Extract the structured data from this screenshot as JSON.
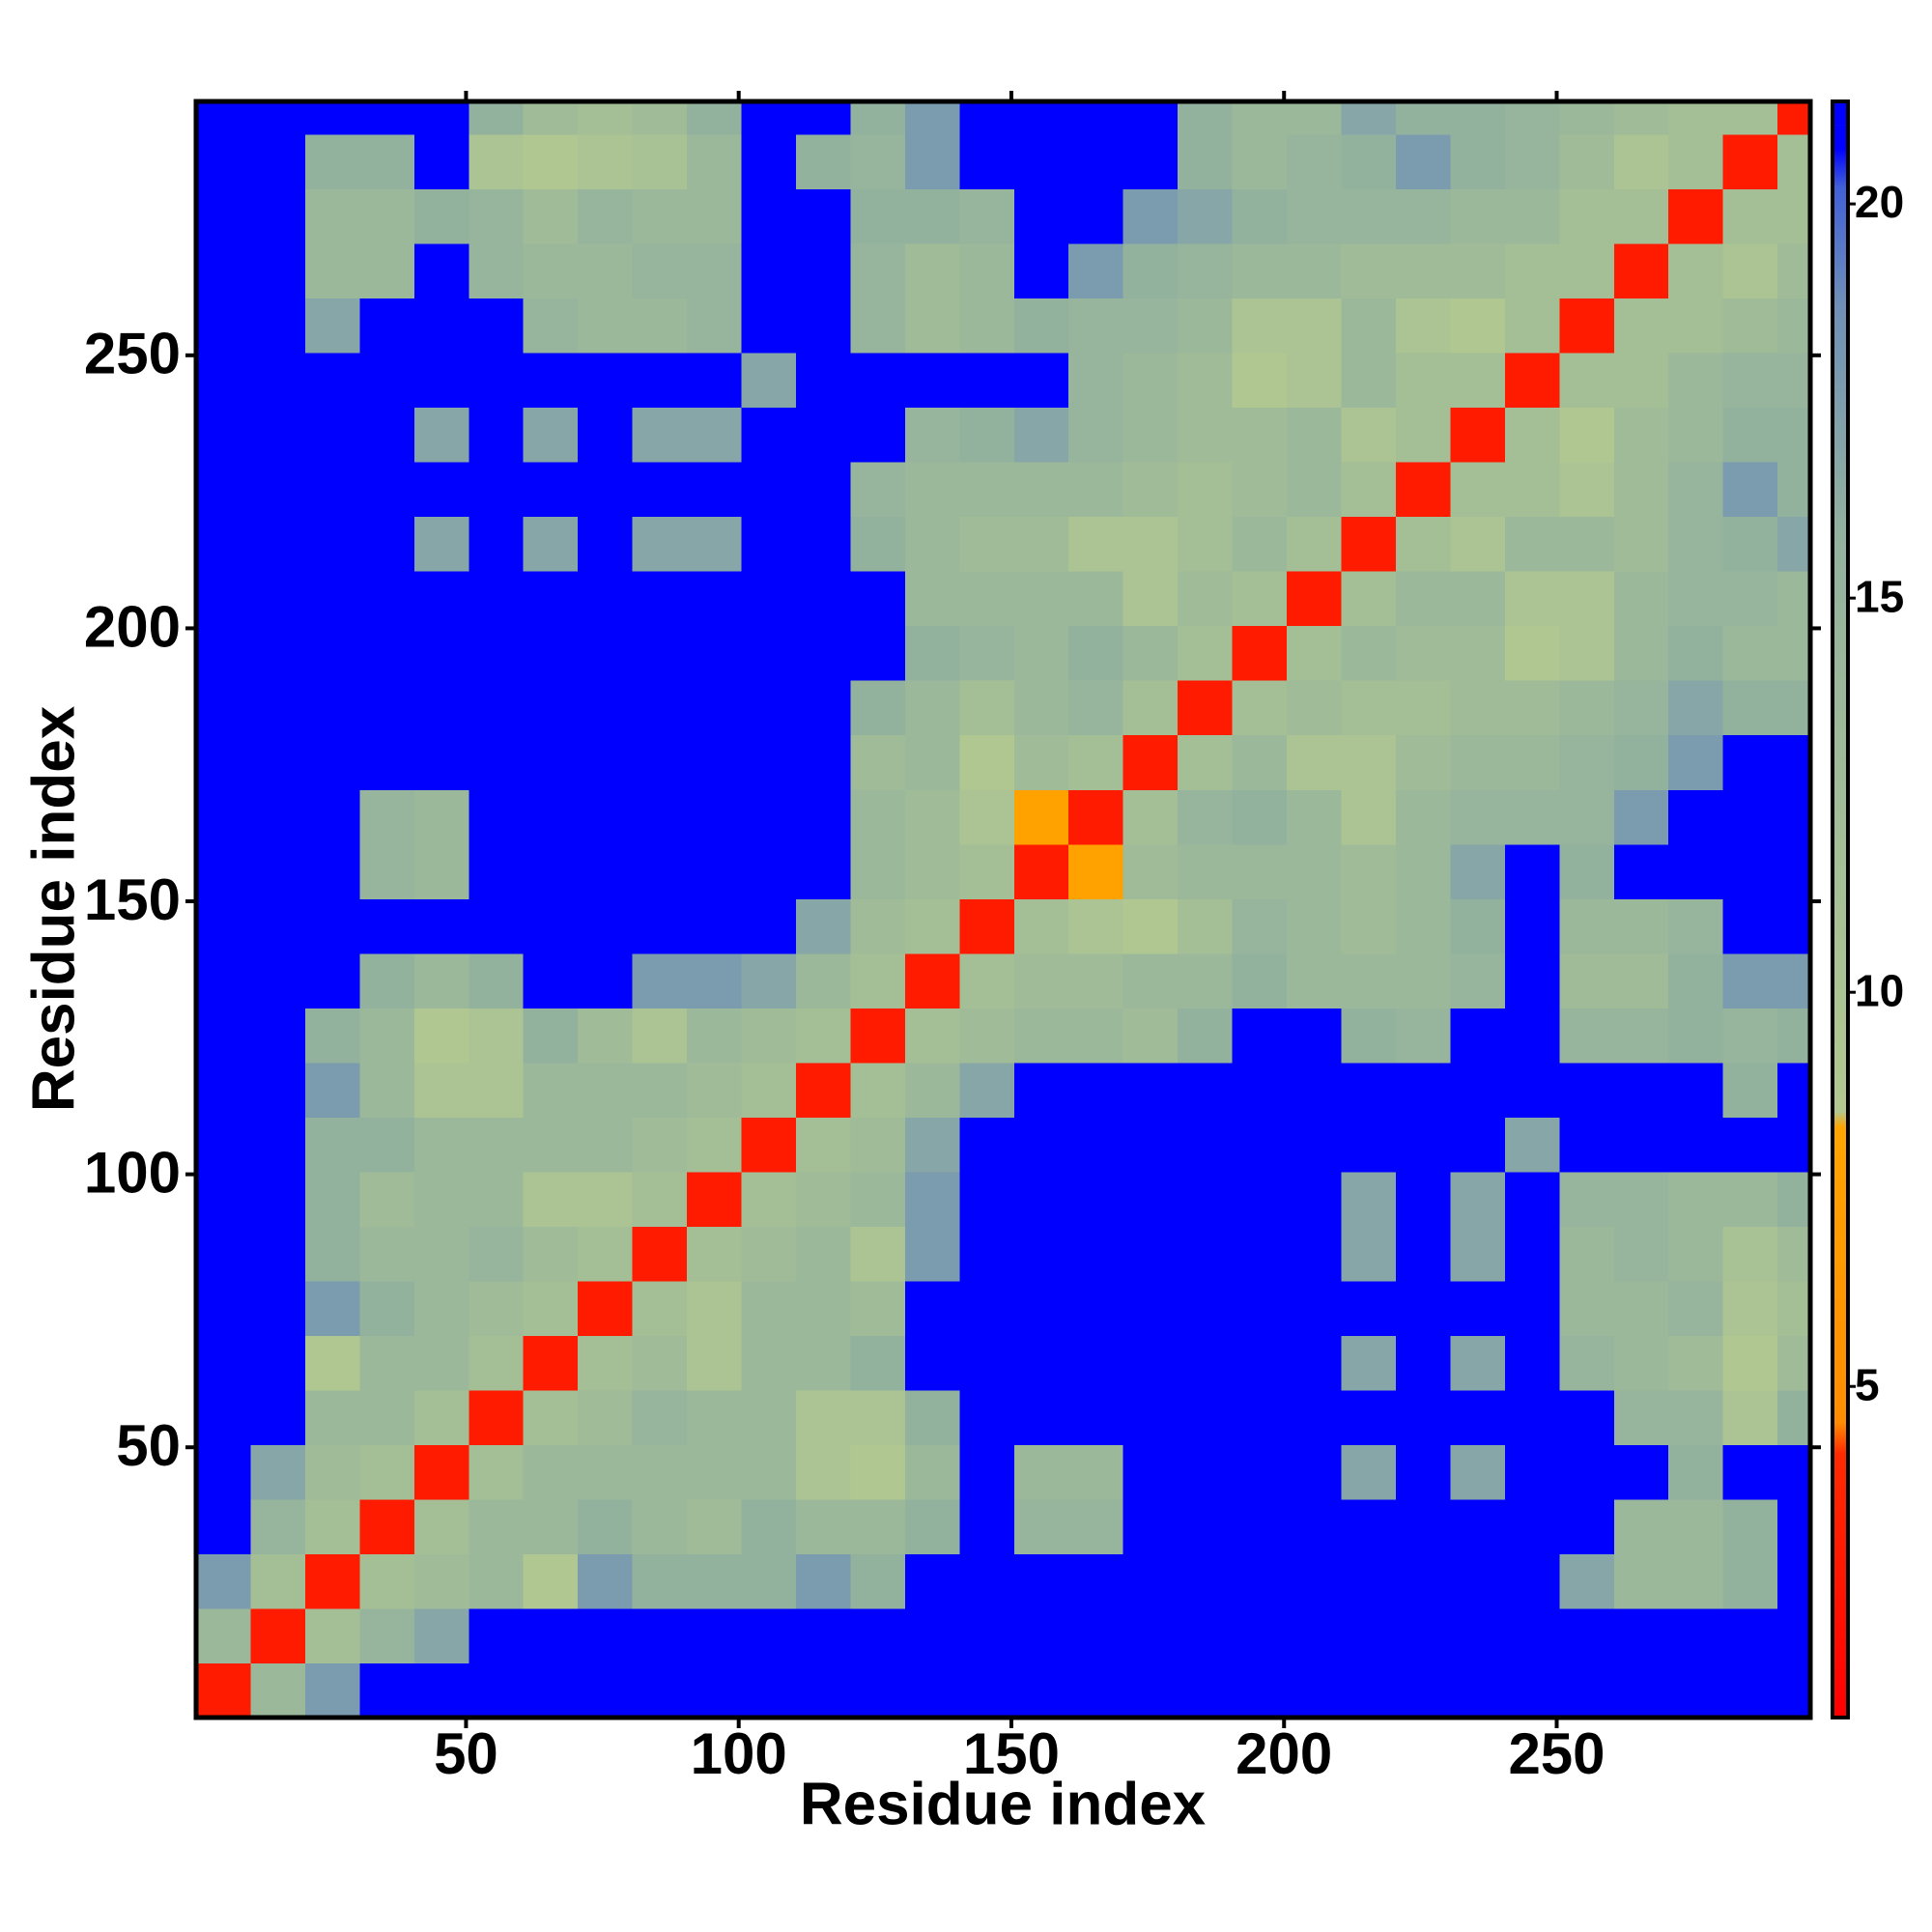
{
  "chart_data": {
    "type": "heatmap",
    "xlabel": "Residue index",
    "ylabel": "Residue index",
    "xlim": [
      0.5,
      296.5
    ],
    "ylim": [
      0.5,
      296.5
    ],
    "xticks": [
      50,
      100,
      150,
      200,
      250
    ],
    "yticks": [
      50,
      100,
      150,
      200,
      250
    ],
    "bins": [
      0.5,
      10.5,
      20.5,
      30.5,
      40.5,
      50.5,
      60.5,
      70.5,
      80.5,
      90.5,
      100.5,
      110.5,
      120.5,
      130.5,
      140.5,
      150.5,
      160.5,
      170.5,
      180.5,
      190.5,
      200.5,
      210.5,
      220.5,
      230.5,
      240.5,
      250.5,
      260.5,
      270.5,
      280.5,
      290.5,
      296.5
    ],
    "symmetric": true,
    "z": [
      [
        3,
        14,
        18,
        21,
        21,
        21,
        21,
        21,
        21,
        21,
        21,
        21,
        21,
        21,
        21,
        21,
        21,
        21,
        21,
        21,
        21,
        21,
        21,
        21,
        21,
        21,
        21,
        21,
        21,
        21
      ],
      [
        3,
        12,
        15,
        17,
        21,
        21,
        21,
        21,
        21,
        21,
        21,
        21,
        21,
        21,
        21,
        21,
        21,
        21,
        21,
        21,
        21,
        21,
        21,
        21,
        21,
        21,
        21,
        21,
        21
      ],
      [
        3,
        12,
        13,
        14,
        9,
        18,
        16,
        16,
        16,
        18,
        16,
        21,
        21,
        21,
        21,
        21,
        21,
        21,
        21,
        21,
        21,
        21,
        21,
        17,
        14,
        14,
        16,
        21
      ],
      [
        3,
        12,
        14,
        14,
        16,
        14,
        13,
        16,
        14,
        14,
        16,
        21,
        15,
        15,
        21,
        21,
        21,
        21,
        21,
        21,
        21,
        21,
        21,
        14,
        14,
        16,
        21
      ],
      [
        3,
        12,
        14,
        14,
        14,
        14,
        14,
        10,
        9,
        14,
        21,
        14,
        14,
        21,
        21,
        21,
        21,
        17,
        21,
        17,
        21,
        21,
        21,
        16,
        21,
        21
      ],
      [
        3,
        12,
        13,
        15,
        14,
        14,
        10,
        10,
        16,
        21,
        21,
        21,
        21,
        21,
        21,
        21,
        21,
        21,
        21,
        21,
        21,
        15,
        15,
        10,
        16
      ],
      [
        3,
        12,
        13,
        10,
        14,
        14,
        16,
        21,
        21,
        21,
        21,
        21,
        21,
        21,
        21,
        17,
        21,
        17,
        21,
        15,
        14,
        13,
        9,
        13
      ],
      [
        3,
        12,
        10,
        14,
        14,
        13,
        21,
        21,
        21,
        21,
        21,
        21,
        21,
        21,
        21,
        21,
        21,
        21,
        14,
        14,
        15,
        10,
        12
      ],
      [
        3,
        12,
        13,
        14,
        10,
        18,
        21,
        21,
        21,
        21,
        21,
        21,
        21,
        17,
        21,
        17,
        21,
        14,
        15,
        14,
        11,
        13
      ],
      [
        3,
        12,
        13,
        14,
        18,
        21,
        21,
        21,
        21,
        21,
        21,
        21,
        17,
        21,
        17,
        21,
        15,
        15,
        14,
        14,
        16
      ],
      [
        3,
        12,
        13,
        17,
        21,
        21,
        21,
        21,
        21,
        21,
        21,
        21,
        21,
        21,
        17,
        21,
        21,
        21,
        21,
        21
      ],
      [
        3,
        12,
        14,
        17,
        21,
        21,
        21,
        21,
        21,
        21,
        21,
        21,
        21,
        21,
        21,
        21,
        21,
        16,
        21
      ],
      [
        3,
        12,
        13,
        14,
        14,
        13,
        16,
        21,
        21,
        16,
        15,
        21,
        21,
        15,
        15,
        16,
        15,
        16
      ],
      [
        3,
        12,
        13,
        13,
        14,
        14,
        16,
        14,
        14,
        14,
        15,
        21,
        13,
        13,
        16,
        18,
        18
      ],
      [
        3,
        12,
        10,
        9,
        12,
        15,
        14,
        13,
        14,
        16,
        21,
        14,
        14,
        15,
        21,
        21
      ],
      [
        3,
        8,
        13,
        14,
        14,
        14,
        13,
        14,
        17,
        21,
        16,
        21,
        21,
        21,
        21
      ],
      [
        3,
        12,
        15,
        16,
        14,
        10,
        14,
        15,
        15,
        15,
        18,
        21,
        21,
        21
      ],
      [
        3,
        12,
        14,
        10,
        10,
        13,
        14,
        14,
        15,
        16,
        18,
        21,
        21
      ],
      [
        3,
        12,
        13,
        12,
        12,
        13,
        13,
        14,
        15,
        17,
        16,
        16
      ],
      [
        3,
        12,
        14,
        13,
        13,
        9,
        10,
        14,
        16,
        14,
        14
      ],
      [
        3,
        12,
        14,
        14,
        10,
        10,
        14,
        15,
        15,
        14
      ],
      [
        3,
        12,
        10,
        14,
        14,
        13,
        15,
        16,
        17
      ],
      [
        3,
        12,
        12,
        10,
        13,
        15,
        18,
        16
      ],
      [
        3,
        12,
        9,
        13,
        14,
        16,
        16
      ],
      [
        3,
        12,
        12,
        14,
        15,
        15
      ],
      [
        3,
        12,
        12,
        13,
        14
      ],
      [
        3,
        12,
        10,
        13
      ],
      [
        3,
        12,
        12
      ],
      [
        3,
        12
      ],
      [
        3
      ]
    ],
    "zlim": [
      0.8,
      21.3
    ],
    "zticks": [
      5,
      10,
      15,
      20
    ],
    "colorscale": [
      [
        0.8,
        "#ff0000"
      ],
      [
        4.2,
        "#ff2a00"
      ],
      [
        4.6,
        "#ff8c00"
      ],
      [
        8.4,
        "#ffa500"
      ],
      [
        8.6,
        "#b2c890"
      ],
      [
        16,
        "#93b29e"
      ],
      [
        19,
        "#6f8fb8"
      ],
      [
        20.5,
        "#4060d8"
      ],
      [
        21,
        "#0000ff"
      ]
    ]
  }
}
